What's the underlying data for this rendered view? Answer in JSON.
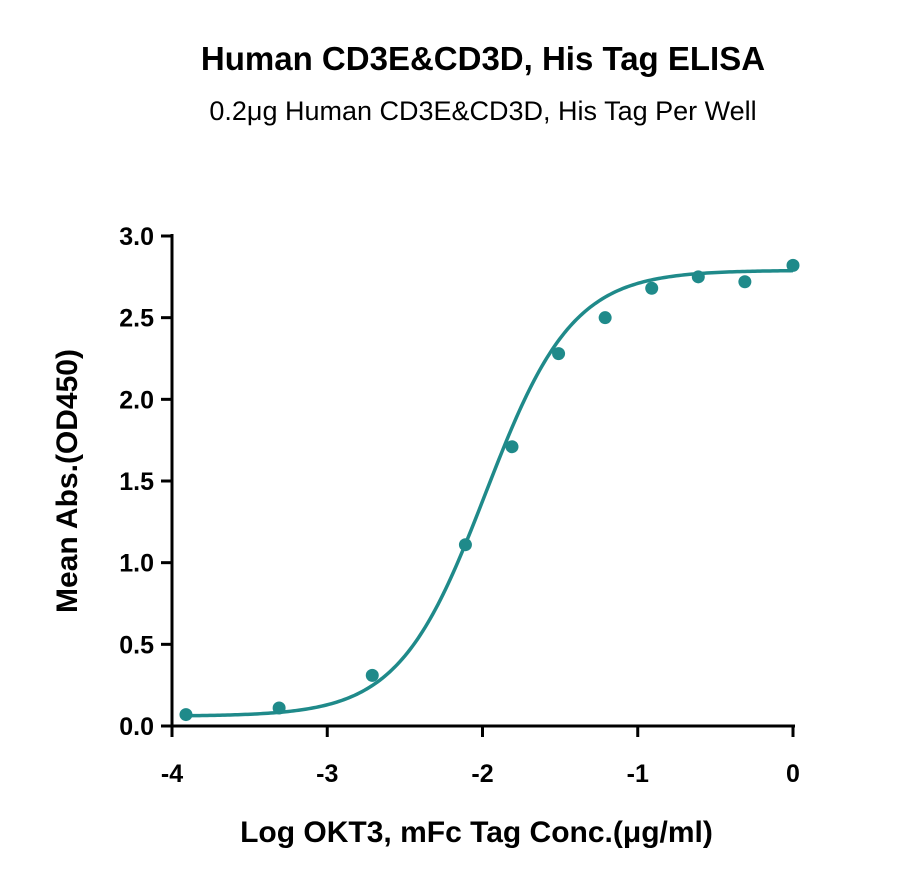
{
  "chart_data": {
    "type": "scatter",
    "title": "Human CD3E&CD3D, His Tag ELISA",
    "subtitle": "0.2μg Human CD3E&CD3D, His Tag Per Well",
    "xlabel": "Log OKT3, mFc Tag Conc.(μg/ml)",
    "ylabel": "Mean Abs.(OD450)",
    "xlim": [
      -4,
      0
    ],
    "ylim": [
      0,
      3.0
    ],
    "x_ticks": [
      "-4",
      "-3",
      "-2",
      "-1",
      "0"
    ],
    "y_ticks": [
      "0.0",
      "0.5",
      "1.0",
      "1.5",
      "2.0",
      "2.5",
      "3.0"
    ],
    "grid": false,
    "color": "#1f8a8a",
    "series": [
      {
        "x": [
          -3.91,
          -3.31,
          -2.71,
          -2.11,
          -1.81,
          -1.51,
          -1.21,
          -0.91,
          -0.61,
          -0.31,
          0.0
        ],
        "y": [
          0.07,
          0.11,
          0.31,
          1.11,
          1.71,
          2.28,
          2.5,
          2.68,
          2.75,
          2.72,
          2.82
        ]
      }
    ],
    "fit_curve": {
      "model": "4PL",
      "bottom": 0.06,
      "top": 2.79,
      "log_ec50": -1.98,
      "hill_slope": 1.55
    }
  }
}
